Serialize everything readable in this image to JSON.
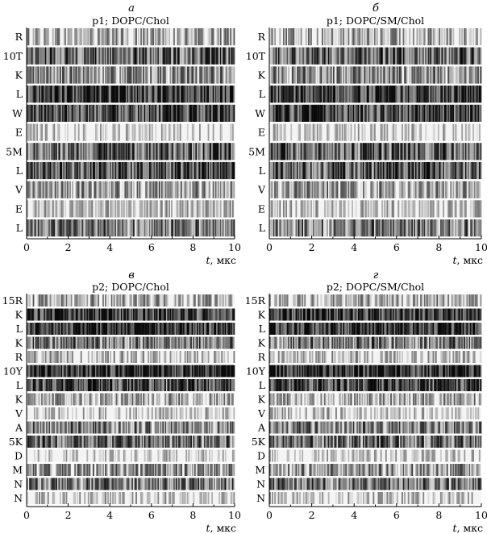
{
  "x_unit_text": ", мкс",
  "x_var_text": "t",
  "chart_data": [
    {
      "type": "heatmap",
      "panel_letter": "а",
      "title": "p1; DOPC/Chol",
      "xlabel": "t, мкс",
      "xlim": [
        0,
        10
      ],
      "x_ticks": [
        0,
        2,
        4,
        6,
        8,
        10
      ],
      "rows": [
        "R",
        "10T",
        "K",
        "L",
        "W",
        "E",
        "5M",
        "L",
        "V",
        "E",
        "L"
      ],
      "row_intensity": [
        0.25,
        0.6,
        0.4,
        0.8,
        0.75,
        0.05,
        0.6,
        0.7,
        0.3,
        0.12,
        0.5
      ]
    },
    {
      "type": "heatmap",
      "panel_letter": "б",
      "title": "p1; DOPC/SM/Chol",
      "xlabel": "t, мкс",
      "xlim": [
        0,
        10
      ],
      "x_ticks": [
        0,
        2,
        4,
        6,
        8,
        10
      ],
      "rows": [
        "R",
        "10T",
        "K",
        "L",
        "W",
        "E",
        "5M",
        "L",
        "V",
        "E",
        "L"
      ],
      "row_intensity": [
        0.25,
        0.6,
        0.4,
        0.8,
        0.75,
        0.05,
        0.6,
        0.65,
        0.35,
        0.12,
        0.5
      ]
    },
    {
      "type": "heatmap",
      "panel_letter": "в",
      "title": "p2; DOPC/Chol",
      "xlabel": "t, мкс",
      "xlim": [
        0,
        10
      ],
      "x_ticks": [
        0,
        2,
        4,
        6,
        8,
        10
      ],
      "rows": [
        "15R",
        "K",
        "L",
        "K",
        "R",
        "10Y",
        "L",
        "K",
        "V",
        "A",
        "5K",
        "D",
        "M",
        "N",
        "N"
      ],
      "row_intensity": [
        0.25,
        0.8,
        0.85,
        0.5,
        0.15,
        0.85,
        0.7,
        0.25,
        0.1,
        0.45,
        0.55,
        0.02,
        0.35,
        0.5,
        0.1
      ]
    },
    {
      "type": "heatmap",
      "panel_letter": "г",
      "title": "p2; DOPC/SM/Chol",
      "xlabel": "t, мкс",
      "xlim": [
        0,
        10
      ],
      "x_ticks": [
        0,
        2,
        4,
        6,
        8,
        10
      ],
      "rows": [
        "15R",
        "K",
        "L",
        "K",
        "R",
        "10Y",
        "L",
        "K",
        "V",
        "A",
        "5K",
        "D",
        "M",
        "N",
        "N"
      ],
      "row_intensity": [
        0.25,
        0.8,
        0.85,
        0.5,
        0.15,
        0.85,
        0.7,
        0.25,
        0.1,
        0.45,
        0.55,
        0.02,
        0.35,
        0.5,
        0.1
      ]
    }
  ]
}
